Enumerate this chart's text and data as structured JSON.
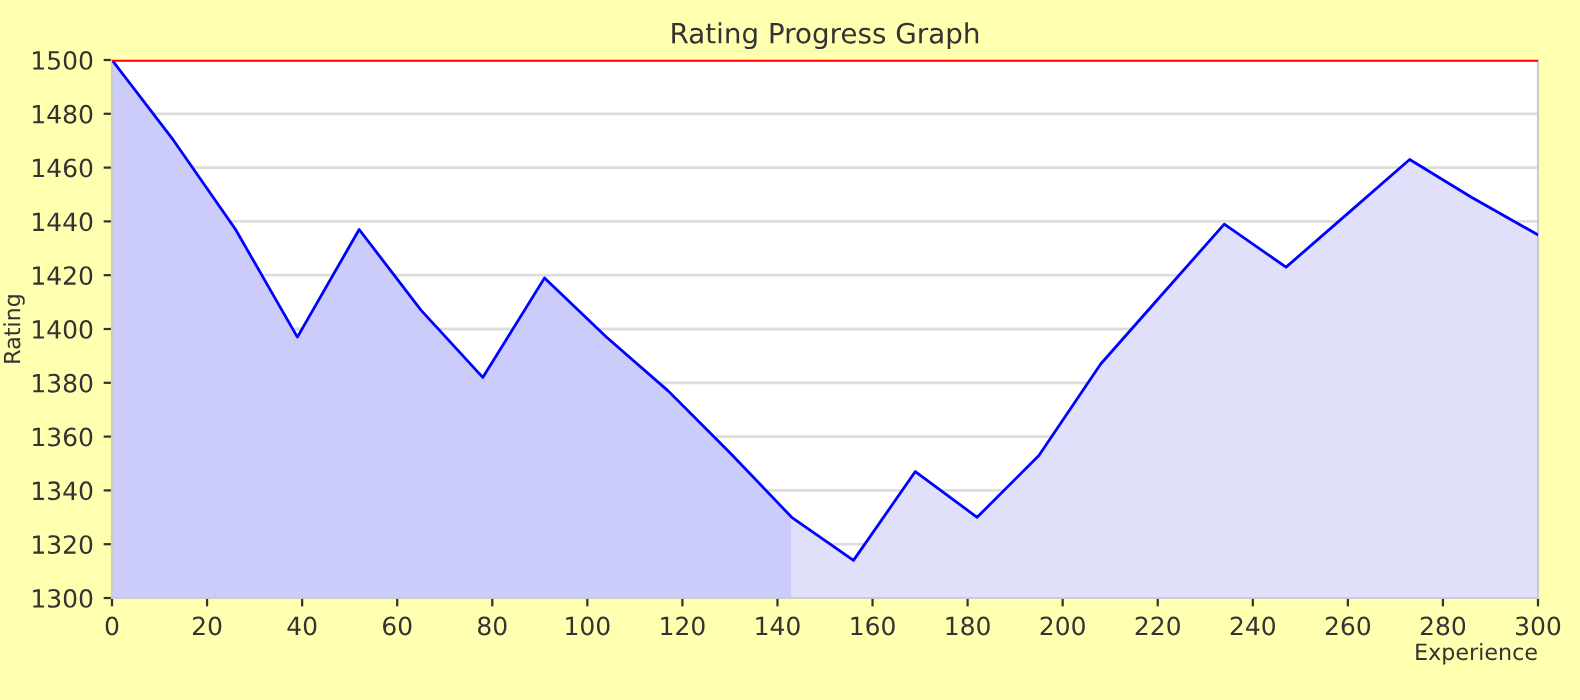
{
  "chart_data": {
    "type": "line",
    "title": "Rating Progress Graph",
    "xlabel": "Experience",
    "ylabel": "Rating",
    "series": [
      {
        "type": "area",
        "color": "#ccccfa",
        "x": [
          0,
          13,
          26,
          39,
          52,
          65,
          78,
          91,
          104,
          117,
          130,
          143
        ],
        "values": [
          1500,
          1470,
          1437,
          1397,
          1437,
          1407,
          1382,
          1419,
          1397,
          1377,
          1354,
          1330
        ]
      },
      {
        "type": "area",
        "color": "#e0e0fb",
        "x": [
          143,
          156,
          169,
          182,
          195,
          208,
          221,
          234,
          247,
          260,
          273,
          286,
          300
        ],
        "values": [
          1330,
          1314,
          1347,
          1330,
          1353,
          1387,
          1413,
          1439,
          1423,
          1443,
          1463,
          1449,
          1435
        ]
      },
      {
        "color": "#0000ff",
        "x": [
          0,
          13,
          26,
          39,
          52,
          65,
          78,
          91,
          104,
          117,
          130,
          143,
          156,
          169,
          182,
          195,
          208,
          221,
          234,
          247,
          260,
          273,
          286,
          300
        ],
        "values": [
          1500,
          1470,
          1437,
          1397,
          1437,
          1407,
          1382,
          1419,
          1397,
          1377,
          1354,
          1330,
          1314,
          1347,
          1330,
          1353,
          1387,
          1413,
          1439,
          1423,
          1443,
          1463,
          1449,
          1435
        ]
      }
    ],
    "ref_lines": [
      {
        "axis": "y",
        "value": 1500,
        "color": "#ff0000"
      }
    ],
    "xlim": [
      0,
      300
    ],
    "xticks": [
      0,
      20,
      40,
      60,
      80,
      100,
      120,
      140,
      160,
      180,
      200,
      220,
      240,
      260,
      280,
      300
    ],
    "ylim": [
      1300,
      1500
    ],
    "yticks": [
      1300,
      1320,
      1340,
      1360,
      1380,
      1400,
      1420,
      1440,
      1460,
      1480,
      1500
    ],
    "grid": "y",
    "legend": false
  }
}
